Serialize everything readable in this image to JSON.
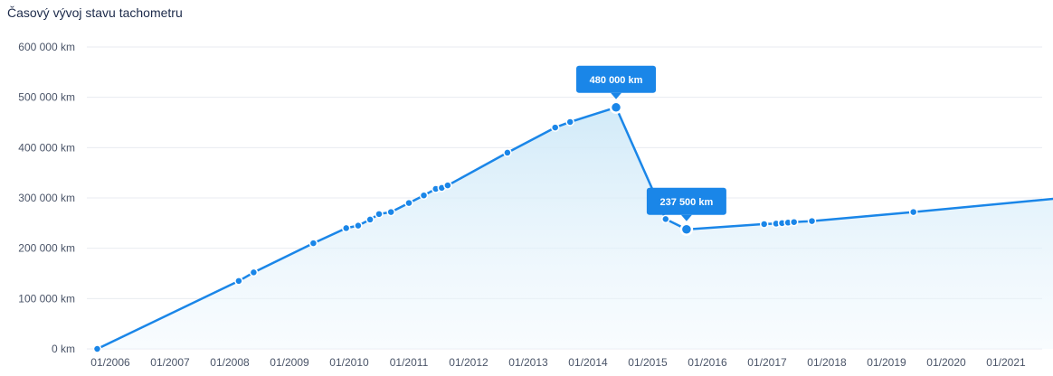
{
  "chart_data": {
    "type": "area",
    "title": "Časový vývoj stavu tachometru",
    "x_tick_labels": [
      "01/2006",
      "01/2007",
      "01/2008",
      "01/2009",
      "01/2010",
      "01/2011",
      "01/2012",
      "01/2013",
      "01/2014",
      "01/2015",
      "01/2016",
      "01/2017",
      "01/2018",
      "01/2019",
      "01/2020",
      "01/2021"
    ],
    "y_tick_labels": [
      "0 km",
      "100 000 km",
      "200 000 km",
      "300 000 km",
      "400 000 km",
      "500 000 km",
      "600 000 km"
    ],
    "ylim": [
      0,
      600000
    ],
    "grid": true,
    "x": [
      2005.78,
      2008.15,
      2008.4,
      2009.4,
      2009.95,
      2010.15,
      2010.35,
      2010.5,
      2010.7,
      2011.0,
      2011.25,
      2011.45,
      2011.55,
      2011.65,
      2012.65,
      2013.45,
      2013.7,
      2014.47,
      2015.3,
      2015.65,
      2016.95,
      2017.15,
      2017.25,
      2017.35,
      2017.45,
      2017.75,
      2019.45,
      2021.95
    ],
    "y": [
      0,
      135000,
      152000,
      210000,
      240000,
      245000,
      257000,
      268000,
      272000,
      290000,
      305000,
      318000,
      320000,
      325000,
      390000,
      440000,
      451000,
      480000,
      258000,
      237500,
      248000,
      249000,
      250000,
      251000,
      252000,
      254000,
      272000,
      300000
    ],
    "annotations": [
      {
        "label": "480 000 km",
        "x": 2014.47,
        "y": 480000
      },
      {
        "label": "237 500 km",
        "x": 2015.65,
        "y": 237500
      }
    ],
    "colors": {
      "line": "#1a86e8",
      "fill": "#d8eefa",
      "tooltip": "#1a86e8"
    }
  }
}
